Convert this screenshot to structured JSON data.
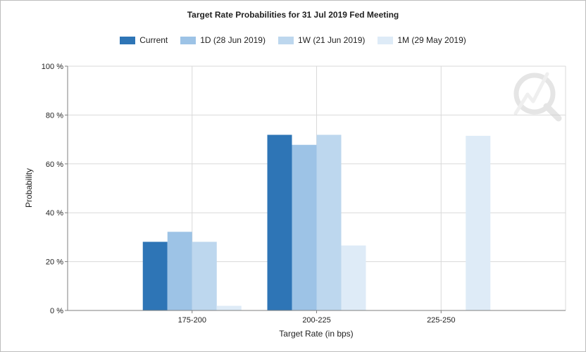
{
  "colors": {
    "series": [
      "#2e75b6",
      "#9dc3e6",
      "#bdd7ee",
      "#deebf7"
    ],
    "grid": "#d9d9d9",
    "axis": "#7f7f7f"
  },
  "icon": "watermark-q-lightning-icon",
  "chart_data": {
    "type": "bar",
    "title": "Target Rate Probabilities for 31 Jul 2019 Fed Meeting",
    "xlabel": "Target Rate (in bps)",
    "ylabel": "Probability",
    "categories": [
      "175-200",
      "200-225",
      "225-250"
    ],
    "ylim": [
      0,
      100
    ],
    "yticks": [
      0,
      20,
      40,
      60,
      80,
      100
    ],
    "ytick_labels": [
      "0 %",
      "20 %",
      "40 %",
      "60 %",
      "80 %",
      "100 %"
    ],
    "grid": true,
    "legend_position": "top-center",
    "series": [
      {
        "name": "Current",
        "values": [
          28.1,
          71.9,
          0
        ]
      },
      {
        "name": "1D (28 Jun 2019)",
        "values": [
          32.2,
          67.8,
          0
        ]
      },
      {
        "name": "1W (21 Jun 2019)",
        "values": [
          28.1,
          71.9,
          0
        ]
      },
      {
        "name": "1M (29 May 2019)",
        "values": [
          1.9,
          26.6,
          71.5
        ]
      }
    ]
  }
}
